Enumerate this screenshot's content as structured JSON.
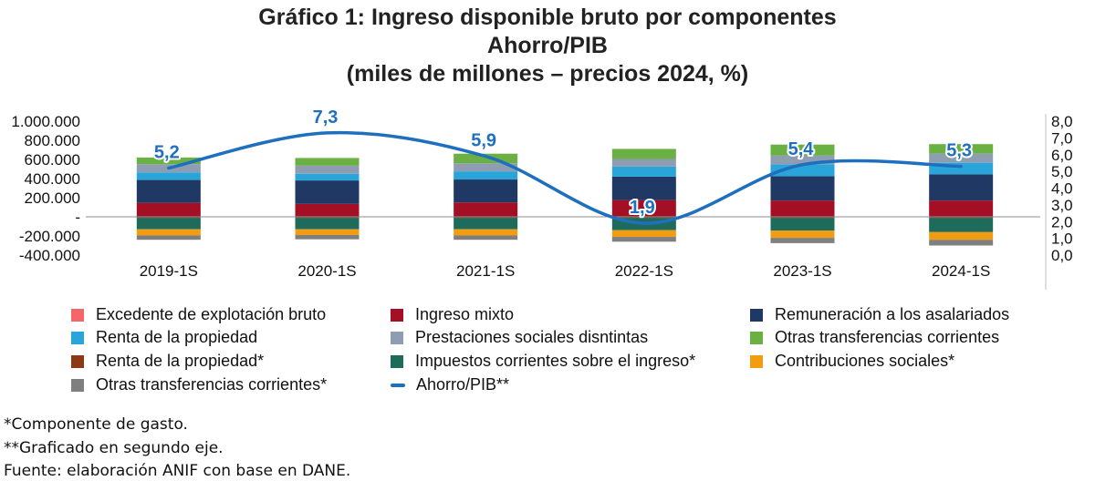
{
  "title": {
    "line1": "Gráfico 1: Ingreso disponible bruto por componentes",
    "line2": "Ahorro/PIB",
    "line3": "(miles de millones – precios 2024, %)"
  },
  "notes": [
    "*Componente de gasto.",
    "**Graficado en segundo eje.",
    "Fuente: elaboración ANIF con base en DANE."
  ],
  "chart_data": {
    "type": "bar",
    "stacked": true,
    "categories": [
      "2019-1S",
      "2020-1S",
      "2021-1S",
      "2022-1S",
      "2023-1S",
      "2024-1S"
    ],
    "y_left": {
      "ylim": [
        -400000,
        1000000
      ],
      "ticks": [
        1000000,
        800000,
        600000,
        400000,
        200000,
        0,
        -200000,
        -400000
      ],
      "tick_labels": [
        "1.000.000",
        "800.000",
        "600.000",
        "400.000",
        "200.000",
        "-",
        "-200.000",
        "-400.000"
      ]
    },
    "y_right": {
      "ylim": [
        0,
        8
      ],
      "ticks": [
        8,
        7,
        6,
        5,
        4,
        3,
        2,
        1,
        0
      ],
      "tick_labels": [
        "8,0",
        "7,0",
        "6,0",
        "5,0",
        "4,0",
        "3,0",
        "2,0",
        "1,0",
        "0,0"
      ]
    },
    "series": [
      {
        "name": "Excedente de explotación bruto",
        "color": "#f4666a",
        "values": [
          5000,
          5000,
          5000,
          5000,
          5000,
          5000
        ]
      },
      {
        "name": "Ingreso mixto",
        "color": "#a50f26",
        "values": [
          140000,
          130000,
          145000,
          170000,
          165000,
          165000
        ]
      },
      {
        "name": "Remuneración a los asalariados",
        "color": "#1f3864",
        "values": [
          240000,
          245000,
          240000,
          245000,
          255000,
          275000
        ]
      },
      {
        "name": "Renta de la propiedad",
        "color": "#2aa5d9",
        "values": [
          80000,
          70000,
          85000,
          105000,
          125000,
          120000
        ]
      },
      {
        "name": "Prestaciones sociales disntintas",
        "color": "#8f9db3",
        "values": [
          85000,
          85000,
          85000,
          80000,
          90000,
          95000
        ]
      },
      {
        "name": "Otras transferencias corrientes",
        "color": "#6ab043",
        "values": [
          70000,
          80000,
          100000,
          105000,
          115000,
          100000
        ]
      },
      {
        "name": "Renta de la propiedad*",
        "color": "#8b3a16",
        "values": [
          -10000,
          -10000,
          -10000,
          -10000,
          -10000,
          -10000
        ]
      },
      {
        "name": "Impuestos corrientes sobre el ingreso*",
        "color": "#1e6b5c",
        "values": [
          -120000,
          -120000,
          -120000,
          -130000,
          -135000,
          -150000
        ]
      },
      {
        "name": "Contribuciones sociales*",
        "color": "#f29c11",
        "values": [
          -65000,
          -60000,
          -65000,
          -70000,
          -75000,
          -80000
        ]
      },
      {
        "name": "Otras transferencias corrientes*",
        "color": "#7f7f7f",
        "values": [
          -45000,
          -45000,
          -45000,
          -50000,
          -55000,
          -60000
        ]
      }
    ],
    "line": {
      "name": "Ahorro/PIB**",
      "color": "#1f6fbf",
      "axis": "right",
      "values": [
        5.2,
        7.3,
        5.9,
        1.9,
        5.4,
        5.3
      ],
      "labels": [
        "5,2",
        "7,3",
        "5,9",
        "1,9",
        "5,4",
        "5,3"
      ]
    },
    "legend": "bottom"
  }
}
